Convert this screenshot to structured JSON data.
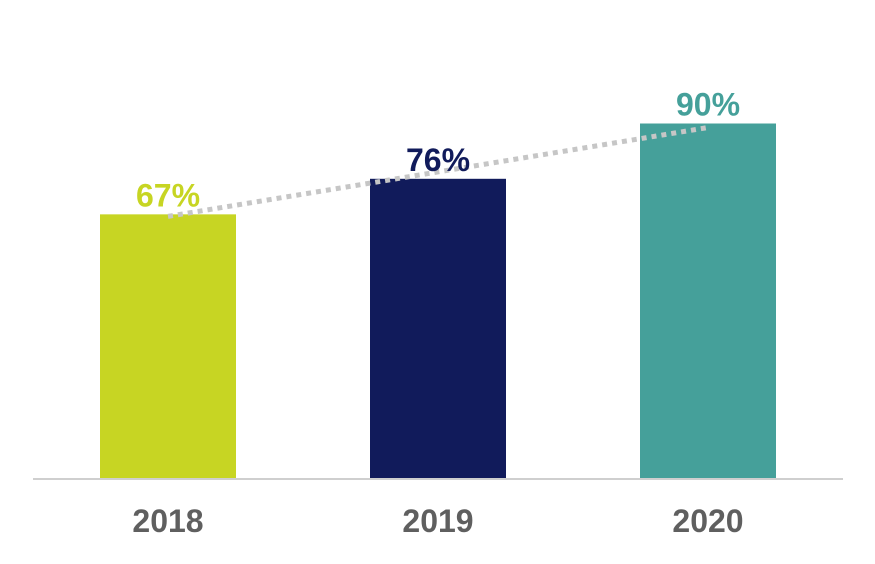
{
  "chart_data": {
    "type": "bar",
    "categories": [
      "2018",
      "2019",
      "2020"
    ],
    "values": [
      67,
      76,
      90
    ],
    "value_labels": [
      "67%",
      "76%",
      "90%"
    ],
    "colors": [
      "#c7d523",
      "#111b5b",
      "#45a09a"
    ],
    "trendline": {
      "style": "dotted",
      "color": "#c6c6c6"
    },
    "title": "",
    "xlabel": "",
    "ylabel": "",
    "ylim": [
      0,
      100
    ],
    "grid": false,
    "legend": "none",
    "axis_color": "#cfcfcf",
    "tick_label_color": "#5f5f5f"
  }
}
